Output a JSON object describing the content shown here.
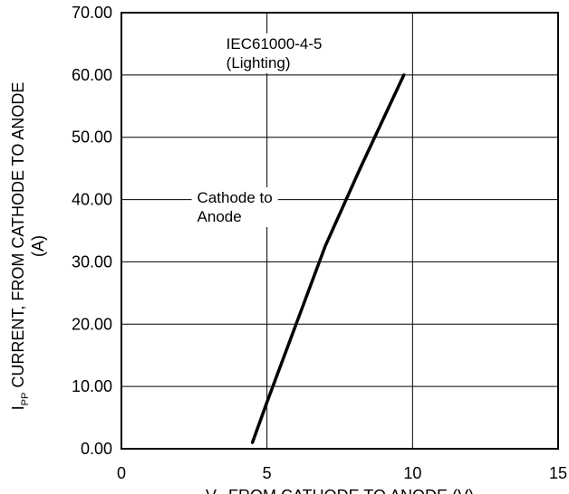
{
  "chart_data": {
    "type": "line",
    "title": "",
    "xlabel": {
      "symbol": "V",
      "subscript": "C",
      "text": " FROM CATHODE TO ANODE (V)"
    },
    "ylabel": {
      "line1_symbol": "I",
      "line1_subscript": "PP",
      "line1_text": " CURRENT, FROM CATHODE TO ANODE",
      "line2_text": "(A)"
    },
    "xlim": [
      0,
      15
    ],
    "ylim": [
      0,
      70
    ],
    "xticks": [
      "0",
      "5",
      "10",
      "15"
    ],
    "yticks": [
      "0.00",
      "10.00",
      "20.00",
      "30.00",
      "40.00",
      "50.00",
      "60.00",
      "70.00"
    ],
    "grid": true,
    "series": [
      {
        "x": [
          4.5,
          5.0,
          6.0,
          7.0,
          8.2,
          9.7
        ],
        "y": [
          1.0,
          7.5,
          20.0,
          32.5,
          45.0,
          60.0
        ]
      }
    ],
    "annotations": [
      {
        "lines": [
          "IEC61000-4-5",
          "(Lighting)"
        ],
        "x": 5.0,
        "y": 64.2
      },
      {
        "lines": [
          "Cathode to",
          "Anode"
        ],
        "x": 2.6,
        "y": 39.5
      }
    ],
    "colors": {
      "line": "#000000",
      "grid": "#000000",
      "background": "#ffffff"
    }
  }
}
